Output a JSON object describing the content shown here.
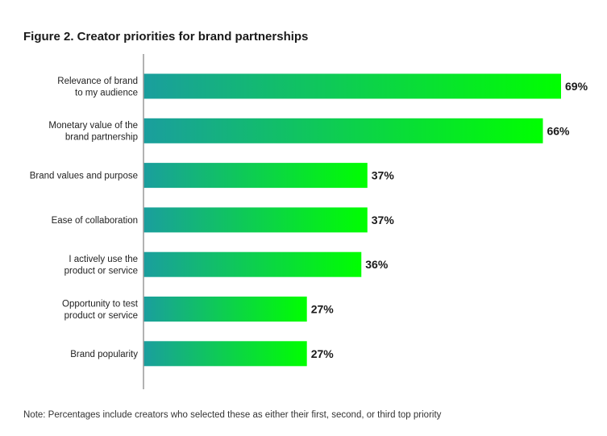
{
  "chart_data": {
    "type": "bar",
    "orientation": "horizontal",
    "title": "Figure 2. Creator priorities for brand partnerships",
    "categories": [
      [
        "Relevance of brand",
        "to my audience"
      ],
      [
        "Monetary value of the",
        "brand partnership"
      ],
      [
        "Brand values and purpose"
      ],
      [
        "Ease of collaboration"
      ],
      [
        "I actively use the",
        "product or service"
      ],
      [
        "Opportunity to test",
        "product or service"
      ],
      [
        "Brand popularity"
      ]
    ],
    "values": [
      69,
      66,
      37,
      37,
      36,
      27,
      27
    ],
    "value_labels": [
      "69%",
      "66%",
      "37%",
      "37%",
      "36%",
      "27%",
      "27%"
    ],
    "xlim": [
      0,
      69
    ],
    "grid": false,
    "colors": {
      "bar_gradient_start": "#1a9e9e",
      "bar_gradient_end": "#00ff00",
      "axis_line": "#999999"
    }
  },
  "note": "Note: Percentages include creators who selected these as either their first, second, or third top priority"
}
